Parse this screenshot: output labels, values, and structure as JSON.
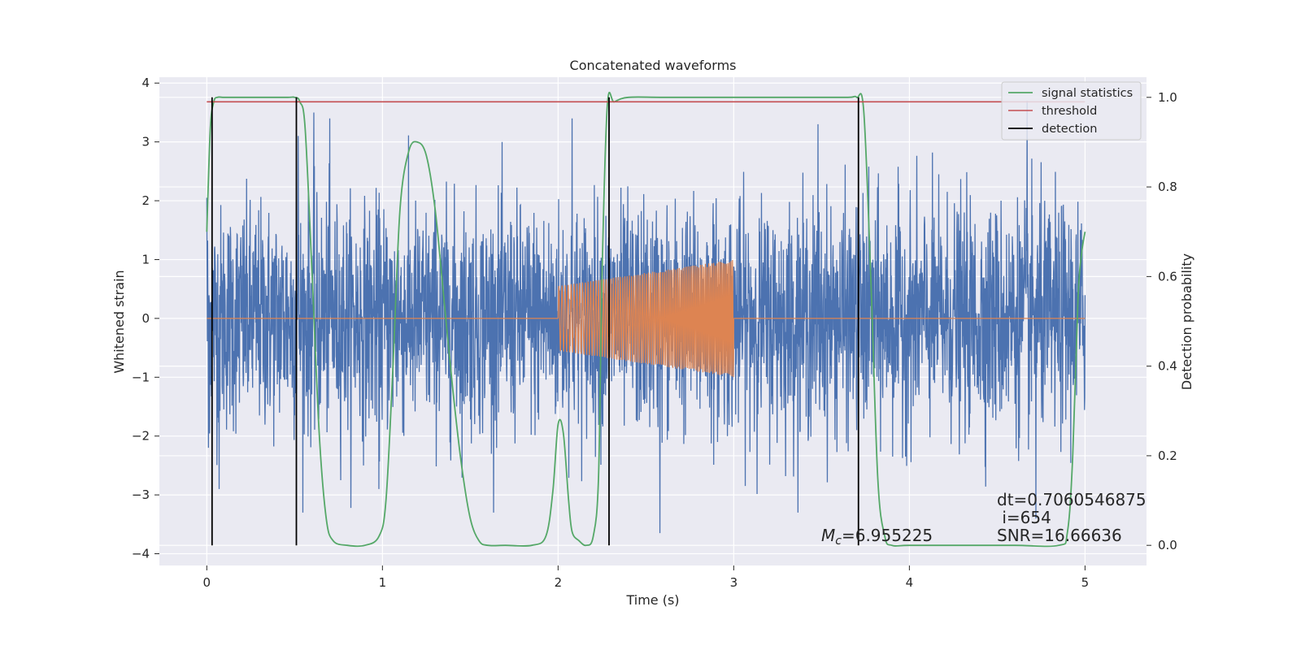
{
  "chart_data": {
    "type": "line",
    "title": "Concatenated waveforms",
    "xlabel": "Time (s)",
    "ylabel": "Whitened strain",
    "y2label": "Detection probability",
    "xlim": [
      -0.27,
      5.35
    ],
    "ylim": [
      -4.2,
      4.1
    ],
    "y2lim": [
      -0.045,
      1.045
    ],
    "xticks": [
      0,
      1,
      2,
      3,
      4,
      5
    ],
    "yticks": [
      -4,
      -3,
      -2,
      -1,
      0,
      1,
      2,
      3,
      4
    ],
    "y2ticks": [
      0.0,
      0.2,
      0.4,
      0.6,
      0.8,
      1.0
    ],
    "xtick_labels": [
      "0",
      "1",
      "2",
      "3",
      "4",
      "5"
    ],
    "ytick_labels": [
      "−4",
      "−3",
      "−2",
      "−1",
      "0",
      "1",
      "2",
      "3",
      "4"
    ],
    "y2tick_labels": [
      "0.0",
      "0.2",
      "0.4",
      "0.6",
      "0.8",
      "1.0"
    ],
    "grid": true,
    "legend_position": "top-right",
    "colors": {
      "strain": "#4c72b0",
      "injection": "#dd8452",
      "signal_statistics": "#55a868",
      "threshold": "#c44e52",
      "detection": "#000000",
      "plot_bg": "#eaeaf2",
      "grid": "#ffffff"
    },
    "series": [
      {
        "name": "",
        "role": "strain",
        "description_free": true,
        "x_range": [
          0,
          5
        ],
        "amplitude_noise": 1.0,
        "peak_values": [
          {
            "x": 0.0,
            "y": 2.05
          },
          {
            "x": 0.01,
            "y": -2.2
          },
          {
            "x": 0.07,
            "y": -2.9
          },
          {
            "x": 0.52,
            "y": 3.1
          },
          {
            "x": 0.61,
            "y": 3.5
          },
          {
            "x": 0.7,
            "y": 3.4
          },
          {
            "x": 0.98,
            "y": -2.9
          },
          {
            "x": 2.08,
            "y": 3.4
          },
          {
            "x": 2.58,
            "y": -3.65
          },
          {
            "x": 3.48,
            "y": 3.3
          },
          {
            "x": 4.67,
            "y": 3.7
          },
          {
            "x": 4.72,
            "y": -3.4
          }
        ]
      },
      {
        "name": "",
        "role": "injection",
        "x": [
          2.0,
          3.0
        ],
        "amplitude_start": 0.55,
        "amplitude_end": 1.0
      },
      {
        "name": "signal statistics",
        "role": "signal_statistics",
        "axis": "right",
        "x": [
          0.0,
          0.02,
          0.04,
          0.06,
          0.1,
          0.2,
          0.45,
          0.5,
          0.53,
          0.56,
          0.6,
          0.64,
          0.68,
          0.72,
          0.8,
          0.9,
          0.98,
          1.02,
          1.06,
          1.1,
          1.15,
          1.2,
          1.25,
          1.3,
          1.35,
          1.4,
          1.45,
          1.5,
          1.55,
          1.6,
          1.7,
          1.85,
          1.93,
          1.97,
          2.0,
          2.03,
          2.06,
          2.08,
          2.12,
          2.16,
          2.2,
          2.23,
          2.25,
          2.28,
          2.32,
          2.4,
          2.6,
          3.0,
          3.4,
          3.65,
          3.7,
          3.74,
          3.78,
          3.82,
          3.86,
          3.9,
          4.0,
          4.3,
          4.6,
          4.85,
          4.9,
          4.93,
          4.96,
          4.98,
          5.0
        ],
        "y": [
          0.7,
          0.93,
          0.99,
          1.0,
          1.0,
          1.0,
          1.0,
          1.0,
          0.99,
          0.93,
          0.6,
          0.25,
          0.06,
          0.01,
          0.0,
          0.0,
          0.02,
          0.1,
          0.4,
          0.75,
          0.88,
          0.9,
          0.87,
          0.75,
          0.55,
          0.35,
          0.18,
          0.06,
          0.01,
          0.0,
          0.0,
          0.0,
          0.02,
          0.12,
          0.27,
          0.25,
          0.1,
          0.03,
          0.01,
          0.0,
          0.02,
          0.15,
          0.6,
          0.98,
          0.99,
          1.0,
          1.0,
          1.0,
          1.0,
          1.0,
          1.0,
          0.97,
          0.6,
          0.15,
          0.02,
          0.0,
          0.0,
          0.0,
          0.0,
          0.0,
          0.03,
          0.2,
          0.55,
          0.65,
          0.7
        ]
      },
      {
        "name": "threshold",
        "role": "threshold",
        "axis": "right",
        "x": [
          0,
          5
        ],
        "y": [
          0.99,
          0.99
        ]
      },
      {
        "name": "detection",
        "role": "detection",
        "x_lines": [
          0.03,
          0.51,
          2.29,
          3.71
        ],
        "axis": "right",
        "y_range": [
          0.0,
          1.0
        ]
      }
    ],
    "annotations": {
      "mc_prefix": "M",
      "mc_sub": "c",
      "mc_value": "=6.955225",
      "dt": "dt=0.7060546875",
      "i": " i=654",
      "snr": "SNR=16.66636"
    }
  }
}
